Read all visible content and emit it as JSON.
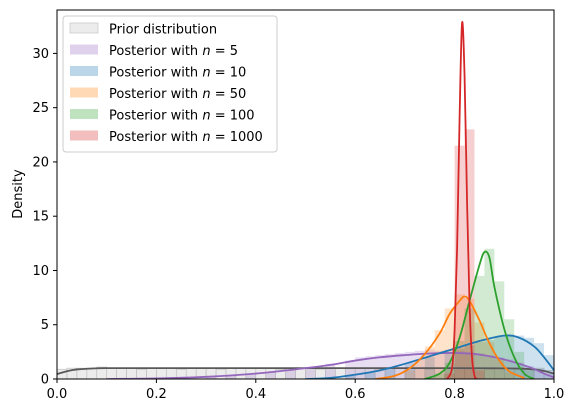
{
  "chart_data": {
    "type": "area",
    "xlabel": "",
    "ylabel": "Density",
    "xlim": [
      0.0,
      1.0
    ],
    "ylim": [
      0,
      34
    ],
    "x_ticks": [
      "0.0",
      "0.2",
      "0.4",
      "0.6",
      "0.8",
      "1.0"
    ],
    "y_ticks": [
      "0",
      "5",
      "10",
      "15",
      "20",
      "25",
      "30"
    ],
    "legend_position": "top-left",
    "bin_width": 0.02,
    "series": [
      {
        "name": "Prior distribution",
        "name_prefix": "Prior distribution",
        "n_label": "",
        "hist_color": "#d9d9d9",
        "line_color": "#595959",
        "hist": [
          [
            0.0,
            0.9
          ],
          [
            0.02,
            1.0
          ],
          [
            0.04,
            1.0
          ],
          [
            0.06,
            1.0
          ],
          [
            0.08,
            1.1
          ],
          [
            0.1,
            1.0
          ],
          [
            0.12,
            1.0
          ],
          [
            0.14,
            1.0
          ],
          [
            0.16,
            0.9
          ],
          [
            0.18,
            1.0
          ],
          [
            0.2,
            1.0
          ],
          [
            0.22,
            1.0
          ],
          [
            0.24,
            0.9
          ],
          [
            0.26,
            1.0
          ],
          [
            0.28,
            1.0
          ],
          [
            0.3,
            1.0
          ],
          [
            0.32,
            0.9
          ],
          [
            0.34,
            1.0
          ],
          [
            0.36,
            1.0
          ],
          [
            0.38,
            1.0
          ],
          [
            0.4,
            1.0
          ],
          [
            0.42,
            1.0
          ],
          [
            0.44,
            0.9
          ],
          [
            0.46,
            1.0
          ],
          [
            0.48,
            1.0
          ],
          [
            0.5,
            1.0
          ],
          [
            0.52,
            0.9
          ],
          [
            0.54,
            1.0
          ],
          [
            0.56,
            1.0
          ],
          [
            0.58,
            1.0
          ],
          [
            0.6,
            1.0
          ],
          [
            0.62,
            1.0
          ],
          [
            0.64,
            0.9
          ],
          [
            0.66,
            1.0
          ],
          [
            0.68,
            1.0
          ],
          [
            0.7,
            1.0
          ],
          [
            0.72,
            1.0
          ],
          [
            0.74,
            0.9
          ],
          [
            0.76,
            1.0
          ],
          [
            0.78,
            1.0
          ],
          [
            0.8,
            1.0
          ],
          [
            0.82,
            1.0
          ],
          [
            0.84,
            1.0
          ],
          [
            0.86,
            0.9
          ],
          [
            0.88,
            1.0
          ],
          [
            0.9,
            1.0
          ],
          [
            0.92,
            1.0
          ],
          [
            0.94,
            0.9
          ],
          [
            0.96,
            1.0
          ],
          [
            0.98,
            0.8
          ]
        ],
        "kde": [
          [
            0.0,
            0.45
          ],
          [
            0.02,
            0.72
          ],
          [
            0.04,
            0.88
          ],
          [
            0.07,
            0.97
          ],
          [
            0.1,
            1.0
          ],
          [
            0.15,
            1.0
          ],
          [
            0.25,
            1.0
          ],
          [
            0.4,
            1.0
          ],
          [
            0.55,
            1.0
          ],
          [
            0.7,
            1.0
          ],
          [
            0.8,
            1.0
          ],
          [
            0.88,
            0.99
          ],
          [
            0.93,
            0.96
          ],
          [
            0.96,
            0.88
          ],
          [
            0.98,
            0.74
          ],
          [
            1.0,
            0.5
          ]
        ]
      },
      {
        "name": "Posterior with n = 5",
        "name_prefix": "Posterior with ",
        "n_label": "5",
        "hist_color": "#9467bd",
        "line_color": "#9467bd",
        "hist": [
          [
            0.3,
            0.2
          ],
          [
            0.34,
            0.3
          ],
          [
            0.38,
            0.4
          ],
          [
            0.42,
            0.6
          ],
          [
            0.46,
            0.8
          ],
          [
            0.5,
            1.1
          ],
          [
            0.54,
            1.4
          ],
          [
            0.58,
            1.7
          ],
          [
            0.6,
            2.0
          ],
          [
            0.62,
            2.1
          ],
          [
            0.64,
            2.2
          ],
          [
            0.66,
            2.3
          ],
          [
            0.68,
            2.4
          ],
          [
            0.7,
            2.5
          ],
          [
            0.72,
            2.6
          ],
          [
            0.74,
            2.7
          ],
          [
            0.76,
            2.6
          ],
          [
            0.78,
            2.7
          ],
          [
            0.8,
            2.6
          ],
          [
            0.82,
            2.5
          ],
          [
            0.84,
            2.4
          ],
          [
            0.86,
            2.2
          ],
          [
            0.88,
            2.0
          ],
          [
            0.9,
            1.8
          ],
          [
            0.92,
            1.5
          ],
          [
            0.94,
            1.2
          ],
          [
            0.96,
            0.9
          ],
          [
            0.98,
            0.5
          ]
        ],
        "kde": [
          [
            0.1,
            0.0
          ],
          [
            0.2,
            0.05
          ],
          [
            0.3,
            0.2
          ],
          [
            0.4,
            0.5
          ],
          [
            0.5,
            1.0
          ],
          [
            0.55,
            1.3
          ],
          [
            0.6,
            1.7
          ],
          [
            0.65,
            2.0
          ],
          [
            0.7,
            2.2
          ],
          [
            0.75,
            2.35
          ],
          [
            0.8,
            2.4
          ],
          [
            0.85,
            2.25
          ],
          [
            0.9,
            1.8
          ],
          [
            0.95,
            1.1
          ],
          [
            0.98,
            0.5
          ],
          [
            1.0,
            0.15
          ]
        ]
      },
      {
        "name": "Posterior with n = 10",
        "name_prefix": "Posterior with ",
        "n_label": "10",
        "hist_color": "#1f77b4",
        "line_color": "#1f77b4",
        "hist": [
          [
            0.58,
            0.3
          ],
          [
            0.62,
            0.6
          ],
          [
            0.66,
            1.0
          ],
          [
            0.7,
            1.5
          ],
          [
            0.74,
            2.0
          ],
          [
            0.78,
            2.5
          ],
          [
            0.8,
            2.8
          ],
          [
            0.82,
            3.1
          ],
          [
            0.84,
            3.4
          ],
          [
            0.86,
            3.6
          ],
          [
            0.88,
            3.9
          ],
          [
            0.9,
            4.1
          ],
          [
            0.92,
            4.0
          ],
          [
            0.94,
            3.8
          ],
          [
            0.96,
            3.3
          ],
          [
            0.98,
            2.2
          ]
        ],
        "kde": [
          [
            0.5,
            0.0
          ],
          [
            0.55,
            0.1
          ],
          [
            0.6,
            0.4
          ],
          [
            0.65,
            0.8
          ],
          [
            0.7,
            1.4
          ],
          [
            0.75,
            2.1
          ],
          [
            0.8,
            2.8
          ],
          [
            0.85,
            3.5
          ],
          [
            0.9,
            4.0
          ],
          [
            0.93,
            3.8
          ],
          [
            0.96,
            3.0
          ],
          [
            0.98,
            2.0
          ],
          [
            1.0,
            0.8
          ]
        ]
      },
      {
        "name": "Posterior with n = 50",
        "name_prefix": "Posterior with ",
        "n_label": "50",
        "hist_color": "#ff7f0e",
        "line_color": "#ff7f0e",
        "hist": [
          [
            0.7,
            0.8
          ],
          [
            0.72,
            1.8
          ],
          [
            0.74,
            3.0
          ],
          [
            0.76,
            4.5
          ],
          [
            0.78,
            6.5
          ],
          [
            0.8,
            7.8
          ],
          [
            0.82,
            7.4
          ],
          [
            0.84,
            5.2
          ],
          [
            0.86,
            3.4
          ],
          [
            0.88,
            1.8
          ],
          [
            0.9,
            0.6
          ]
        ],
        "kde": [
          [
            0.64,
            0.0
          ],
          [
            0.68,
            0.3
          ],
          [
            0.71,
            1.0
          ],
          [
            0.74,
            2.3
          ],
          [
            0.77,
            4.2
          ],
          [
            0.79,
            6.0
          ],
          [
            0.81,
            7.2
          ],
          [
            0.82,
            7.6
          ],
          [
            0.83,
            7.2
          ],
          [
            0.85,
            5.4
          ],
          [
            0.87,
            3.3
          ],
          [
            0.89,
            1.7
          ],
          [
            0.91,
            0.7
          ],
          [
            0.94,
            0.1
          ]
        ]
      },
      {
        "name": "Posterior with n = 100",
        "name_prefix": "Posterior with ",
        "n_label": "100",
        "hist_color": "#2ca02c",
        "line_color": "#2ca02c",
        "hist": [
          [
            0.76,
            0.5
          ],
          [
            0.78,
            1.5
          ],
          [
            0.8,
            3.5
          ],
          [
            0.82,
            6.5
          ],
          [
            0.84,
            9.5
          ],
          [
            0.86,
            12.0
          ],
          [
            0.88,
            9.0
          ],
          [
            0.9,
            5.5
          ],
          [
            0.92,
            2.5
          ],
          [
            0.94,
            0.8
          ]
        ],
        "kde": [
          [
            0.74,
            0.0
          ],
          [
            0.77,
            0.5
          ],
          [
            0.79,
            1.5
          ],
          [
            0.81,
            3.8
          ],
          [
            0.83,
            7.2
          ],
          [
            0.85,
            10.5
          ],
          [
            0.86,
            11.7
          ],
          [
            0.87,
            11.2
          ],
          [
            0.88,
            8.5
          ],
          [
            0.9,
            4.6
          ],
          [
            0.92,
            2.0
          ],
          [
            0.94,
            0.5
          ],
          [
            0.96,
            0.0
          ]
        ]
      },
      {
        "name": "Posterior with n = 1000",
        "name_prefix": "Posterior with ",
        "n_label": "1000",
        "hist_color": "#d62728",
        "line_color": "#d62728",
        "hist": [
          [
            0.78,
            0.5
          ],
          [
            0.8,
            21.5
          ],
          [
            0.82,
            23.0
          ],
          [
            0.84,
            0.8
          ]
        ],
        "kde": [
          [
            0.785,
            0.0
          ],
          [
            0.795,
            1.0
          ],
          [
            0.8,
            4.5
          ],
          [
            0.805,
            12.0
          ],
          [
            0.81,
            24.0
          ],
          [
            0.815,
            32.8
          ],
          [
            0.82,
            28.0
          ],
          [
            0.825,
            16.5
          ],
          [
            0.83,
            7.0
          ],
          [
            0.835,
            2.0
          ],
          [
            0.84,
            0.3
          ],
          [
            0.845,
            0.0
          ]
        ]
      }
    ]
  }
}
